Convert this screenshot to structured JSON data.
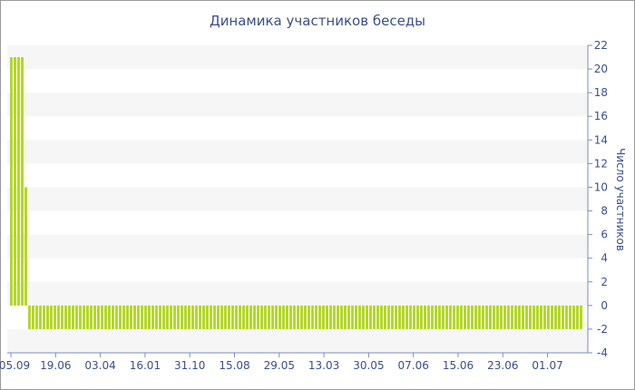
{
  "chart_data": {
    "type": "bar",
    "title": "Динамика участников беседы",
    "xlabel": "",
    "ylabel": "Число участников",
    "ylim": [
      -4,
      22
    ],
    "yticks": [
      -4,
      -2,
      0,
      2,
      4,
      6,
      8,
      10,
      12,
      14,
      16,
      18,
      20,
      22
    ],
    "x_tick_labels": [
      "05.09",
      "19.06",
      "03.04",
      "16.01",
      "31.10",
      "15.08",
      "29.05",
      "13.03",
      "30.05",
      "07.06",
      "15.06",
      "23.06",
      "01.07"
    ],
    "grid": "alternating horizontal bands",
    "bar_color": "#b5d629",
    "series": [
      {
        "values": [
          21,
          21,
          21,
          21,
          10,
          -2,
          -2,
          -2,
          -2,
          -2,
          -2,
          -2,
          -2,
          -2,
          -2,
          -2,
          -2,
          -2,
          -2,
          -2,
          -2,
          -2,
          -2,
          -2,
          -2,
          -2,
          -2,
          -2,
          -2,
          -2,
          -2,
          -2,
          -2,
          -2,
          -2,
          -2,
          -2,
          -2,
          -2,
          -2,
          -2,
          -2,
          -2,
          -2,
          -2,
          -2,
          -2,
          -2,
          -2,
          -2,
          -2,
          -2,
          -2,
          -2,
          -2,
          -2,
          -2,
          -2,
          -2,
          -2,
          -2,
          -2,
          -2,
          -2,
          -2,
          -2,
          -2,
          -2,
          -2,
          -2,
          -2,
          -2,
          -2,
          -2,
          -2,
          -2,
          -2,
          -2,
          -2,
          -2,
          -2,
          -2,
          -2,
          -2,
          -2,
          -2,
          -2,
          -2,
          -2,
          -2,
          -2,
          -2,
          -2,
          -2,
          -2,
          -2,
          -2,
          -2,
          -2,
          -2,
          -2,
          -2,
          -2,
          -2,
          -2,
          -2,
          -2,
          -2,
          -2,
          -2,
          -2,
          -2,
          -2,
          -2,
          -2,
          -2,
          -2,
          -2,
          -2,
          -2,
          -2,
          -2,
          -2,
          -2,
          -2,
          -2,
          -2,
          -2,
          -2,
          -2,
          -2,
          -2,
          -2,
          -2,
          -2,
          -2,
          -2,
          -2,
          -2,
          -2,
          -2,
          -2,
          -2,
          -2,
          -2,
          -2,
          -2,
          -2,
          -2,
          -2,
          -2,
          -2,
          -2,
          -2,
          -2,
          -2,
          -2,
          -2
        ]
      }
    ]
  }
}
